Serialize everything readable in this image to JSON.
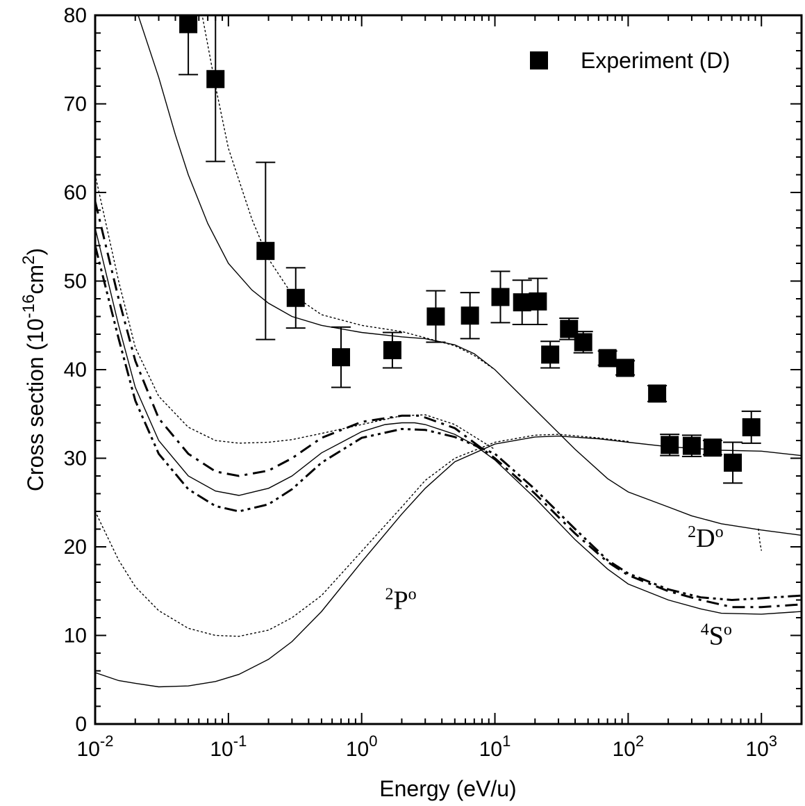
{
  "chart_data": {
    "type": "line",
    "xlabel": "Energy (eV/u)",
    "ylabel": "Cross section (10-16cm2)",
    "ylabel_parts": {
      "pre": "Cross section (10",
      "sup1": "-16",
      "mid": "cm",
      "sup2": "2",
      "post": ")"
    },
    "xscale": "log",
    "xlim": [
      0.01,
      2000
    ],
    "ylim": [
      0,
      80
    ],
    "grid": false,
    "legend_position": "top-right",
    "x_tick_labels": [
      {
        "base": "10",
        "exp": "-2",
        "value": 0.01
      },
      {
        "base": "10",
        "exp": "-1",
        "value": 0.1
      },
      {
        "base": "10",
        "exp": "0",
        "value": 1
      },
      {
        "base": "10",
        "exp": "1",
        "value": 10
      },
      {
        "base": "10",
        "exp": "2",
        "value": 100
      },
      {
        "base": "10",
        "exp": "3",
        "value": 1000
      }
    ],
    "y_tick_labels": [
      "0",
      "10",
      "20",
      "30",
      "40",
      "50",
      "60",
      "70",
      "80"
    ],
    "annotations": [
      {
        "sup": "2",
        "main": "D",
        "supo": "o",
        "x": 280,
        "y": 20
      },
      {
        "sup": "2",
        "main": "P",
        "supo": "o",
        "x": 1.5,
        "y": 13
      },
      {
        "sup": "4",
        "main": "S",
        "supo": "o",
        "x": 350,
        "y": 9
      }
    ],
    "series": [
      {
        "name": "Experiment (D)",
        "kind": "scatter",
        "marker": "square",
        "points": [
          {
            "x": 0.05,
            "y": 79,
            "err": 5.7
          },
          {
            "x": 0.08,
            "y": 72.8,
            "err": 9.3
          },
          {
            "x": 0.19,
            "y": 53.4,
            "err": 10
          },
          {
            "x": 0.32,
            "y": 48.1,
            "err": 3.4
          },
          {
            "x": 0.7,
            "y": 41.4,
            "err": 3.4
          },
          {
            "x": 1.7,
            "y": 42.2,
            "err": 2
          },
          {
            "x": 3.6,
            "y": 46,
            "err": 2.9
          },
          {
            "x": 6.5,
            "y": 46.1,
            "err": 2.6
          },
          {
            "x": 11,
            "y": 48.2,
            "err": 2.9
          },
          {
            "x": 16,
            "y": 47.6,
            "err": 2.5
          },
          {
            "x": 21,
            "y": 47.7,
            "err": 2.6
          },
          {
            "x": 26,
            "y": 41.7,
            "err": 1.5
          },
          {
            "x": 36,
            "y": 44.6,
            "err": 1.2
          },
          {
            "x": 46,
            "y": 43.1,
            "err": 1.2
          },
          {
            "x": 70,
            "y": 41.3,
            "err": 0.8
          },
          {
            "x": 95,
            "y": 40.2,
            "err": 0.8
          },
          {
            "x": 165,
            "y": 37.3,
            "err": 0.9
          },
          {
            "x": 205,
            "y": 31.5,
            "err": 1.2
          },
          {
            "x": 300,
            "y": 31.4,
            "err": 1.2
          },
          {
            "x": 430,
            "y": 31.2,
            "err": 0.8
          },
          {
            "x": 610,
            "y": 29.5,
            "err": 2.3
          },
          {
            "x": 840,
            "y": 33.5,
            "err": 1.8
          }
        ]
      },
      {
        "kind": "line",
        "style": "solid",
        "width": 1.4,
        "points": [
          [
            0.019,
            82
          ],
          [
            0.03,
            73
          ],
          [
            0.04,
            66.5
          ],
          [
            0.05,
            62
          ],
          [
            0.07,
            56.5
          ],
          [
            0.1,
            52
          ],
          [
            0.15,
            49
          ],
          [
            0.2,
            47.5
          ],
          [
            0.3,
            46
          ],
          [
            0.5,
            45
          ],
          [
            1,
            44.2
          ],
          [
            2,
            43.7
          ],
          [
            3,
            43.5
          ],
          [
            5,
            42.8
          ],
          [
            7,
            41.8
          ],
          [
            10,
            40
          ],
          [
            20,
            35.5
          ],
          [
            40,
            31
          ],
          [
            70,
            27.7
          ],
          [
            100,
            26.2
          ],
          [
            200,
            24.5
          ],
          [
            300,
            23.5
          ],
          [
            500,
            22.6
          ],
          [
            1000,
            21.9
          ],
          [
            2000,
            21.3
          ]
        ]
      },
      {
        "kind": "line",
        "style": "dotted",
        "width": 1.4,
        "points": [
          [
            0.06,
            82
          ],
          [
            0.08,
            72
          ],
          [
            0.1,
            65
          ],
          [
            0.15,
            57
          ],
          [
            0.2,
            52.5
          ],
          [
            0.3,
            48.5
          ],
          [
            0.5,
            46.2
          ],
          [
            1,
            45
          ],
          [
            2,
            44.3
          ],
          [
            3,
            43.6
          ],
          [
            5,
            42.7
          ],
          [
            7,
            41.6
          ],
          [
            10,
            40
          ]
        ]
      },
      {
        "kind": "line",
        "style": "solid",
        "width": 1.4,
        "points": [
          [
            0.01,
            56
          ],
          [
            0.015,
            45
          ],
          [
            0.02,
            38
          ],
          [
            0.03,
            32
          ],
          [
            0.05,
            28
          ],
          [
            0.08,
            26.3
          ],
          [
            0.12,
            25.8
          ],
          [
            0.2,
            26.6
          ],
          [
            0.3,
            28
          ],
          [
            0.5,
            30.6
          ],
          [
            1,
            33
          ],
          [
            1.5,
            33.8
          ],
          [
            2,
            34
          ],
          [
            2.5,
            34
          ],
          [
            3,
            33.8
          ],
          [
            5,
            32.7
          ],
          [
            7,
            31.5
          ],
          [
            10,
            29.8
          ],
          [
            20,
            25.5
          ],
          [
            40,
            20.8
          ],
          [
            70,
            17.5
          ],
          [
            100,
            15.8
          ],
          [
            200,
            14
          ],
          [
            350,
            13
          ],
          [
            500,
            12.5
          ],
          [
            1000,
            12.4
          ],
          [
            2000,
            12.7
          ]
        ]
      },
      {
        "kind": "line",
        "style": "dashdot",
        "width": 3,
        "points": [
          [
            0.01,
            59
          ],
          [
            0.015,
            48
          ],
          [
            0.02,
            41
          ],
          [
            0.03,
            34.5
          ],
          [
            0.05,
            30.5
          ],
          [
            0.08,
            28.5
          ],
          [
            0.12,
            28
          ],
          [
            0.2,
            28.6
          ],
          [
            0.3,
            30
          ],
          [
            0.5,
            32.3
          ],
          [
            1,
            34.1
          ],
          [
            2,
            34.8
          ],
          [
            2.7,
            34.8
          ],
          [
            3,
            34.6
          ],
          [
            5,
            33.4
          ],
          [
            10,
            30
          ],
          [
            20,
            26
          ],
          [
            40,
            21.5
          ],
          [
            70,
            18.3
          ],
          [
            100,
            16.8
          ],
          [
            200,
            15
          ],
          [
            350,
            14
          ],
          [
            600,
            13.2
          ],
          [
            1000,
            13.2
          ],
          [
            2000,
            13.5
          ]
        ]
      },
      {
        "kind": "line",
        "style": "dashdotdot",
        "width": 3,
        "points": [
          [
            0.01,
            54
          ],
          [
            0.015,
            43.5
          ],
          [
            0.02,
            36.5
          ],
          [
            0.03,
            30.5
          ],
          [
            0.05,
            26.5
          ],
          [
            0.08,
            24.6
          ],
          [
            0.12,
            24
          ],
          [
            0.2,
            24.8
          ],
          [
            0.3,
            26.5
          ],
          [
            0.5,
            29.5
          ],
          [
            1,
            32.3
          ],
          [
            2,
            33.3
          ],
          [
            3,
            33.2
          ],
          [
            5,
            32.4
          ],
          [
            10,
            30.5
          ],
          [
            20,
            26.5
          ],
          [
            40,
            22
          ],
          [
            70,
            18.5
          ],
          [
            100,
            17
          ],
          [
            200,
            15.2
          ],
          [
            350,
            14.3
          ],
          [
            600,
            14
          ],
          [
            1000,
            14.2
          ],
          [
            2000,
            14.5
          ]
        ]
      },
      {
        "kind": "line",
        "style": "dotted",
        "width": 1.4,
        "points": [
          [
            0.01,
            24
          ],
          [
            0.015,
            18.5
          ],
          [
            0.02,
            15.5
          ],
          [
            0.03,
            12.8
          ],
          [
            0.05,
            10.8
          ],
          [
            0.08,
            10
          ],
          [
            0.12,
            9.9
          ],
          [
            0.2,
            10.6
          ],
          [
            0.3,
            12
          ],
          [
            0.5,
            14.5
          ],
          [
            1,
            19.5
          ],
          [
            2,
            24.5
          ],
          [
            3,
            27.5
          ],
          [
            5,
            30
          ],
          [
            10,
            31.8
          ],
          [
            20,
            32.6
          ],
          [
            30,
            32.7
          ],
          [
            60,
            32.3
          ],
          [
            100,
            31.9
          ]
        ]
      },
      {
        "kind": "line",
        "style": "solid",
        "width": 1.4,
        "points": [
          [
            0.01,
            5.8
          ],
          [
            0.015,
            4.9
          ],
          [
            0.02,
            4.6
          ],
          [
            0.03,
            4.2
          ],
          [
            0.05,
            4.3
          ],
          [
            0.08,
            4.8
          ],
          [
            0.12,
            5.6
          ],
          [
            0.2,
            7.3
          ],
          [
            0.3,
            9.3
          ],
          [
            0.5,
            12.7
          ],
          [
            1,
            18.3
          ],
          [
            2,
            23.7
          ],
          [
            3,
            26.6
          ],
          [
            5,
            29.6
          ],
          [
            10,
            31.6
          ],
          [
            20,
            32.4
          ],
          [
            30,
            32.5
          ],
          [
            60,
            32.2
          ],
          [
            100,
            31.8
          ],
          [
            200,
            31.3
          ],
          [
            500,
            30.9
          ],
          [
            1000,
            30.8
          ],
          [
            2000,
            30.3
          ]
        ]
      },
      {
        "kind": "line",
        "style": "dotted",
        "width": 1.4,
        "points": [
          [
            0.01,
            62
          ],
          [
            0.015,
            50
          ],
          [
            0.02,
            42.5
          ],
          [
            0.03,
            37
          ],
          [
            0.05,
            33.5
          ],
          [
            0.08,
            32
          ],
          [
            0.12,
            31.7
          ],
          [
            0.2,
            31.8
          ],
          [
            0.3,
            32.1
          ],
          [
            0.5,
            32.8
          ],
          [
            1,
            33.8
          ],
          [
            2,
            34.8
          ],
          [
            3,
            34.9
          ],
          [
            5,
            33.8
          ],
          [
            10,
            31
          ]
        ]
      },
      {
        "kind": "line",
        "style": "dotted",
        "width": 1.4,
        "points": [
          [
            950,
            22
          ],
          [
            975,
            20.5
          ],
          [
            1000,
            19.6
          ]
        ]
      }
    ]
  }
}
